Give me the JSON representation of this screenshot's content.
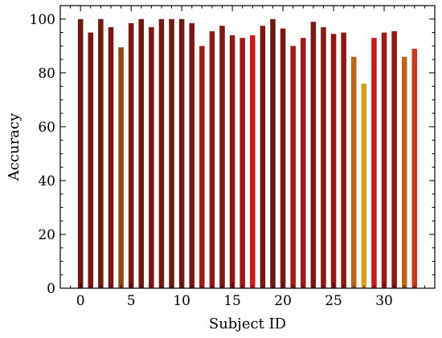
{
  "chart_data": {
    "type": "bar",
    "title": "",
    "xlabel": "Subject ID",
    "ylabel": "Accuracy",
    "xlim": [
      -2,
      35
    ],
    "ylim": [
      0,
      105
    ],
    "x_ticks": [
      0,
      5,
      10,
      15,
      20,
      25,
      30
    ],
    "y_ticks": [
      0,
      20,
      40,
      60,
      80,
      100
    ],
    "grid": false,
    "x": [
      0,
      1,
      2,
      3,
      4,
      5,
      6,
      7,
      8,
      9,
      10,
      11,
      12,
      13,
      14,
      15,
      16,
      17,
      18,
      19,
      20,
      21,
      22,
      23,
      24,
      25,
      26,
      27,
      28,
      29,
      30,
      31,
      32,
      33
    ],
    "values": [
      100,
      95,
      100,
      97,
      89.5,
      98.5,
      100,
      97,
      100,
      100,
      100,
      98.5,
      90,
      95.5,
      97.5,
      94,
      93,
      94,
      97.5,
      100,
      96.5,
      90,
      93,
      99,
      97,
      94.5,
      95,
      86,
      76,
      93,
      95,
      95.5,
      86,
      89
    ],
    "colors": [
      "#6e1a12",
      "#7a1712",
      "#6e1a12",
      "#7a1712",
      "#8b4a12",
      "#7a1712",
      "#6e1a12",
      "#7a1712",
      "#6e1a12",
      "#6e1a12",
      "#6e1a12",
      "#7a1712",
      "#a01a18",
      "#8c1812",
      "#7a1712",
      "#8c1812",
      "#a01a18",
      "#c81c1c",
      "#7a1712",
      "#6e1a12",
      "#7a1712",
      "#a01a18",
      "#a01a18",
      "#7a1712",
      "#8c1812",
      "#8c1812",
      "#8c1812",
      "#b8661a",
      "#d6a01e",
      "#c81c1c",
      "#a01a18",
      "#8c1812",
      "#b8661a",
      "#c43a1c"
    ]
  }
}
